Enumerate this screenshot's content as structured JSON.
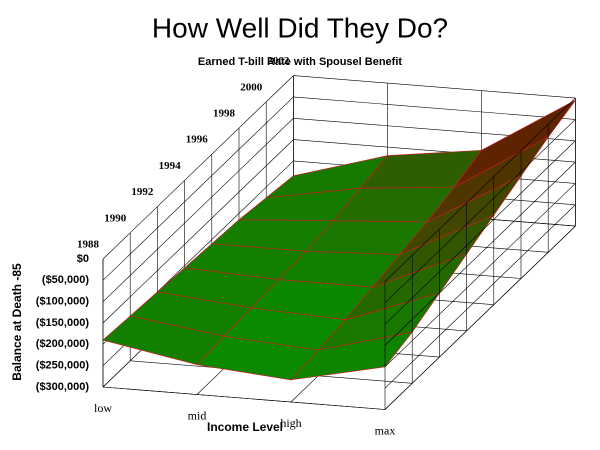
{
  "chart_data": {
    "type": "surface",
    "title": "How Well Did They Do?",
    "subtitle": "Earned T-bill Rate with Spousel Benefit",
    "x_label": "Income Level",
    "z_label": "Balance at Death -85",
    "categories": [
      "low",
      "mid",
      "high",
      "max"
    ],
    "ylim": [
      1988,
      2002
    ],
    "yticks": [
      1988,
      1990,
      1992,
      1994,
      1996,
      1998,
      2000,
      2002
    ],
    "zlim": [
      -300000,
      0
    ],
    "zticks": [
      {
        "value": 0,
        "label": "$0"
      },
      {
        "value": -50000,
        "label": "($50,000)"
      },
      {
        "value": -100000,
        "label": "($100,000)"
      },
      {
        "value": -150000,
        "label": "($150,000)"
      },
      {
        "value": -200000,
        "label": "($200,000)"
      },
      {
        "value": -250000,
        "label": "($250,000)"
      },
      {
        "value": -300000,
        "label": "($300,000)"
      }
    ],
    "y": [
      1988,
      1990,
      1992,
      1994,
      1996,
      1998,
      2000,
      2002
    ],
    "z": [
      [
        -190000,
        -230000,
        -248000,
        -200000
      ],
      [
        -195000,
        -225000,
        -240000,
        -180000
      ],
      [
        -200000,
        -220000,
        -230000,
        -150000
      ],
      [
        -205000,
        -215000,
        -215000,
        -120000
      ],
      [
        -210000,
        -210000,
        -200000,
        -90000
      ],
      [
        -215000,
        -200000,
        -185000,
        -60000
      ],
      [
        -225000,
        -185000,
        -165000,
        -30000
      ],
      [
        -235000,
        -170000,
        -140000,
        -5000
      ]
    ],
    "colormap": [
      "#0a8a00",
      "#7a0000"
    ],
    "grid": true
  }
}
